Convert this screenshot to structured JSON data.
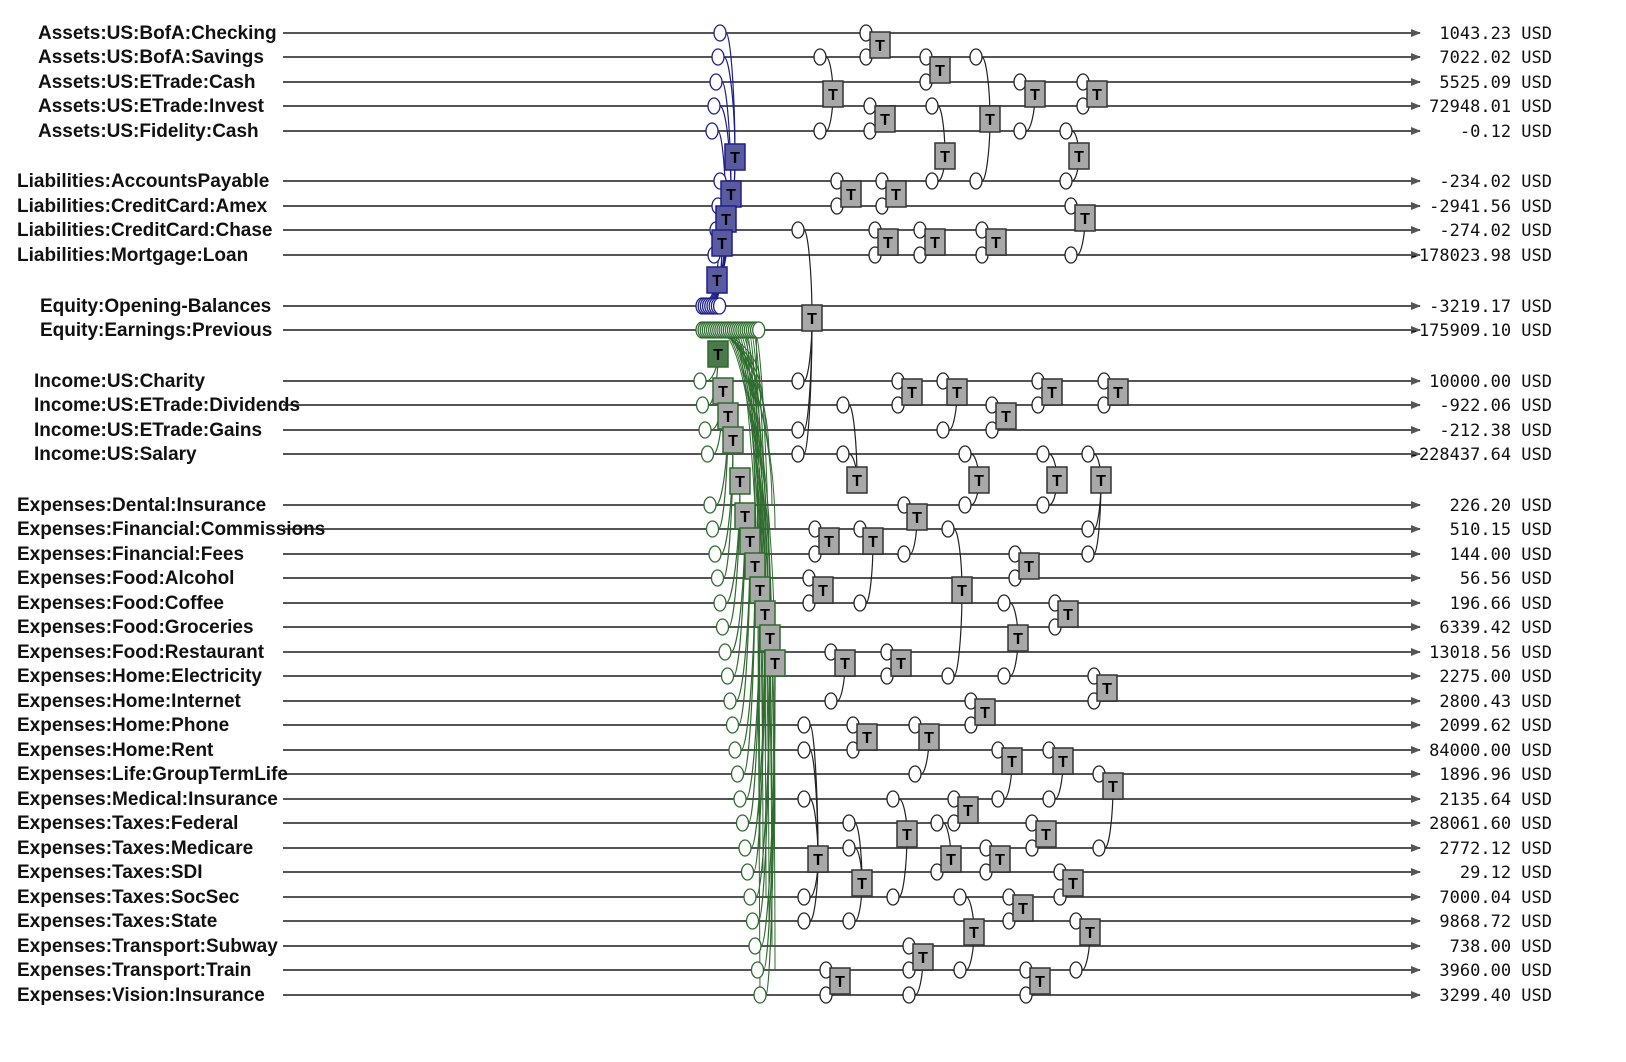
{
  "accounts": [
    {
      "name": "Assets:US:BofA:Checking",
      "balance": "1043.23 USD",
      "group": "assets"
    },
    {
      "name": "Assets:US:BofA:Savings",
      "balance": "7022.02 USD",
      "group": "assets"
    },
    {
      "name": "Assets:US:ETrade:Cash",
      "balance": "5525.09 USD",
      "group": "assets"
    },
    {
      "name": "Assets:US:ETrade:Invest",
      "balance": "72948.01 USD",
      "group": "assets"
    },
    {
      "name": "Assets:US:Fidelity:Cash",
      "balance": "-0.12 USD",
      "group": "assets"
    },
    {
      "name": "Liabilities:AccountsPayable",
      "balance": "-234.02 USD",
      "group": "liabilities"
    },
    {
      "name": "Liabilities:CreditCard:Amex",
      "balance": "-2941.56 USD",
      "group": "liabilities"
    },
    {
      "name": "Liabilities:CreditCard:Chase",
      "balance": "-274.02 USD",
      "group": "liabilities"
    },
    {
      "name": "Liabilities:Mortgage:Loan",
      "balance": "-178023.98 USD",
      "group": "liabilities"
    },
    {
      "name": "Equity:Opening-Balances",
      "balance": "-3219.17 USD",
      "group": "equity"
    },
    {
      "name": "Equity:Earnings:Previous",
      "balance": "-175909.10 USD",
      "group": "equity"
    },
    {
      "name": "Income:US:Charity",
      "balance": "10000.00 USD",
      "group": "income"
    },
    {
      "name": "Income:US:ETrade:Dividends",
      "balance": "-922.06 USD",
      "group": "income"
    },
    {
      "name": "Income:US:ETrade:Gains",
      "balance": "-212.38 USD",
      "group": "income"
    },
    {
      "name": "Income:US:Salary",
      "balance": "-228437.64 USD",
      "group": "income"
    },
    {
      "name": "Expenses:Dental:Insurance",
      "balance": "226.20 USD",
      "group": "expenses"
    },
    {
      "name": "Expenses:Financial:Commissions",
      "balance": "510.15 USD",
      "group": "expenses"
    },
    {
      "name": "Expenses:Financial:Fees",
      "balance": "144.00 USD",
      "group": "expenses"
    },
    {
      "name": "Expenses:Food:Alcohol",
      "balance": "56.56 USD",
      "group": "expenses"
    },
    {
      "name": "Expenses:Food:Coffee",
      "balance": "196.66 USD",
      "group": "expenses"
    },
    {
      "name": "Expenses:Food:Groceries",
      "balance": "6339.42 USD",
      "group": "expenses"
    },
    {
      "name": "Expenses:Food:Restaurant",
      "balance": "13018.56 USD",
      "group": "expenses"
    },
    {
      "name": "Expenses:Home:Electricity",
      "balance": "2275.00 USD",
      "group": "expenses"
    },
    {
      "name": "Expenses:Home:Internet",
      "balance": "2800.43 USD",
      "group": "expenses"
    },
    {
      "name": "Expenses:Home:Phone",
      "balance": "2099.62 USD",
      "group": "expenses"
    },
    {
      "name": "Expenses:Home:Rent",
      "balance": "84000.00 USD",
      "group": "expenses"
    },
    {
      "name": "Expenses:Life:GroupTermLife",
      "balance": "1896.96 USD",
      "group": "expenses"
    },
    {
      "name": "Expenses:Medical:Insurance",
      "balance": "2135.64 USD",
      "group": "expenses"
    },
    {
      "name": "Expenses:Taxes:Federal",
      "balance": "28061.60 USD",
      "group": "expenses"
    },
    {
      "name": "Expenses:Taxes:Medicare",
      "balance": "2772.12 USD",
      "group": "expenses"
    },
    {
      "name": "Expenses:Taxes:SDI",
      "balance": "29.12 USD",
      "group": "expenses"
    },
    {
      "name": "Expenses:Taxes:SocSec",
      "balance": "7000.04 USD",
      "group": "expenses"
    },
    {
      "name": "Expenses:Taxes:State",
      "balance": "9868.72 USD",
      "group": "expenses"
    },
    {
      "name": "Expenses:Transport:Subway",
      "balance": "738.00 USD",
      "group": "expenses"
    },
    {
      "name": "Expenses:Transport:Train",
      "balance": "3960.00 USD",
      "group": "expenses"
    },
    {
      "name": "Expenses:Vision:Insurance",
      "balance": "3299.40 USD",
      "group": "expenses"
    }
  ],
  "transaction_marker": "T",
  "colors": {
    "timeline": "#555555",
    "opening_balances": "#1f1f8a",
    "previous_earnings": "#2e6b2e",
    "transaction_box": "#a8a8a8"
  }
}
